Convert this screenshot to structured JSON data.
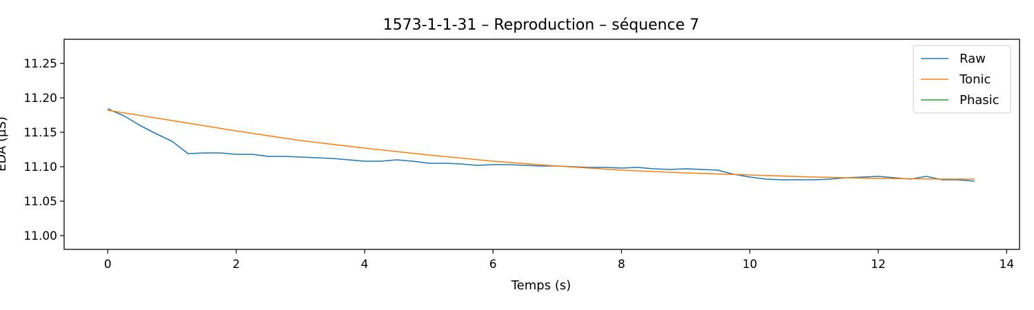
{
  "chart_data": {
    "type": "line",
    "title": "1573-1-1-31 – Reproduction – séquence 7",
    "xlabel": "Temps (s)",
    "ylabel": "EDA (µS)",
    "xlim": [
      -0.68,
      14.2
    ],
    "ylim": [
      10.98,
      11.285
    ],
    "x_ticks": [
      0,
      2,
      4,
      6,
      8,
      10,
      12,
      14
    ],
    "y_ticks": [
      11.0,
      11.05,
      11.1,
      11.15,
      11.2,
      11.25
    ],
    "grid": false,
    "legend_position": "top-right",
    "series": [
      {
        "name": "Raw",
        "color": "#1f77b4",
        "x": [
          0,
          0.25,
          0.5,
          0.75,
          1.0,
          1.25,
          1.5,
          1.75,
          2.0,
          2.25,
          2.5,
          2.75,
          3.0,
          3.25,
          3.5,
          3.75,
          4.0,
          4.25,
          4.5,
          4.75,
          5.0,
          5.25,
          5.5,
          5.75,
          6.0,
          6.25,
          6.5,
          6.75,
          7.0,
          7.25,
          7.5,
          7.75,
          8.0,
          8.25,
          8.5,
          8.75,
          9.0,
          9.25,
          9.5,
          9.75,
          10.0,
          10.25,
          10.5,
          10.75,
          11.0,
          11.25,
          11.5,
          11.75,
          12.0,
          12.25,
          12.5,
          12.75,
          13.0,
          13.25,
          13.5
        ],
        "y": [
          11.184,
          11.174,
          11.16,
          11.148,
          11.137,
          11.119,
          11.12,
          11.12,
          11.118,
          11.118,
          11.115,
          11.115,
          11.114,
          11.113,
          11.112,
          11.11,
          11.108,
          11.108,
          11.11,
          11.108,
          11.105,
          11.105,
          11.104,
          11.102,
          11.103,
          11.103,
          11.102,
          11.101,
          11.101,
          11.1,
          11.099,
          11.099,
          11.098,
          11.099,
          11.097,
          11.096,
          11.097,
          11.096,
          11.095,
          11.089,
          11.085,
          11.082,
          11.081,
          11.081,
          11.081,
          11.082,
          11.084,
          11.085,
          11.086,
          11.084,
          11.082,
          11.086,
          11.081,
          11.081,
          11.079
        ]
      },
      {
        "name": "Tonic",
        "color": "#ff7f0e",
        "x": [
          0,
          1,
          2,
          3,
          4,
          5,
          6,
          7,
          8,
          9,
          10,
          11,
          12,
          13,
          13.5
        ],
        "y": [
          11.182,
          11.167,
          11.152,
          11.138,
          11.127,
          11.117,
          11.108,
          11.101,
          11.095,
          11.091,
          11.088,
          11.085,
          11.083,
          11.082,
          11.082
        ]
      },
      {
        "name": "Phasic",
        "color": "#2ca02c",
        "x": [],
        "y": []
      }
    ]
  }
}
